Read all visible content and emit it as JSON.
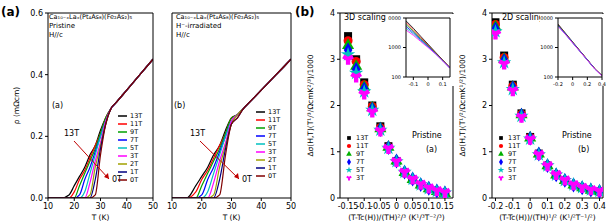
{
  "chart_data": [
    {
      "type": "line",
      "title": "Ca₁₀₋ₓLaₓ(Pt₄As₈)(Fe₂As₂)₅",
      "subtitle": "Pristine",
      "annotations": [
        "(a)",
        "(a)",
        "H//c",
        "13T",
        "0T"
      ],
      "x_label": "T (K)",
      "y_label": "ρ (mΩcm)",
      "xlim": [
        10,
        50
      ],
      "xticks": [
        10,
        20,
        30,
        40,
        50
      ],
      "ylim": [
        0,
        0.6
      ],
      "yticks": [
        {
          "value": 0,
          "label": "0.0"
        },
        {
          "value": 0.2,
          "label": "0.2"
        },
        {
          "value": 0.4,
          "label": "0.4"
        },
        {
          "value": 0.6,
          "label": "0.6"
        }
      ],
      "grid": false,
      "legend": "right",
      "line_style": "solid",
      "x": [
        10,
        15,
        18,
        20,
        22,
        24,
        26,
        28,
        30,
        32,
        34,
        36,
        40,
        45,
        50
      ],
      "series": [
        {
          "name": "13T",
          "color": "#000000",
          "values": [
            0,
            0,
            0.01,
            0.04,
            0.07,
            0.1,
            0.14,
            0.17,
            0.22,
            0.26,
            0.29,
            0.31,
            0.35,
            0.4,
            0.45
          ]
        },
        {
          "name": "11T",
          "color": "#ff0000",
          "values": [
            0,
            0,
            0,
            0.02,
            0.06,
            0.09,
            0.13,
            0.17,
            0.21,
            0.26,
            0.29,
            0.31,
            0.35,
            0.4,
            0.45
          ]
        },
        {
          "name": "9T",
          "color": "#00a000",
          "values": [
            0,
            0,
            0,
            0,
            0.04,
            0.08,
            0.12,
            0.16,
            0.21,
            0.26,
            0.29,
            0.31,
            0.35,
            0.4,
            0.45
          ]
        },
        {
          "name": "7T",
          "color": "#0000ff",
          "values": [
            0,
            0,
            0,
            0,
            0.01,
            0.06,
            0.1,
            0.15,
            0.2,
            0.25,
            0.29,
            0.31,
            0.35,
            0.4,
            0.45
          ]
        },
        {
          "name": "5T",
          "color": "#00c0c0",
          "values": [
            0,
            0,
            0,
            0,
            0,
            0.02,
            0.08,
            0.14,
            0.2,
            0.25,
            0.29,
            0.31,
            0.35,
            0.4,
            0.45
          ]
        },
        {
          "name": "3T",
          "color": "#ff00ff",
          "values": [
            0,
            0,
            0,
            0,
            0,
            0,
            0.05,
            0.12,
            0.18,
            0.25,
            0.29,
            0.31,
            0.35,
            0.4,
            0.45
          ]
        },
        {
          "name": "2T",
          "color": "#a0a000",
          "values": [
            0,
            0,
            0,
            0,
            0,
            0,
            0.01,
            0.1,
            0.17,
            0.24,
            0.29,
            0.31,
            0.35,
            0.4,
            0.45
          ]
        },
        {
          "name": "1T",
          "color": "#000080",
          "values": [
            0,
            0,
            0,
            0,
            0,
            0,
            0,
            0.06,
            0.16,
            0.24,
            0.29,
            0.31,
            0.35,
            0.4,
            0.45
          ]
        },
        {
          "name": "0T",
          "color": "#800000",
          "values": [
            0,
            0,
            0,
            0,
            0,
            0,
            0,
            0.01,
            0.14,
            0.24,
            0.29,
            0.31,
            0.35,
            0.4,
            0.45
          ]
        }
      ]
    },
    {
      "type": "line",
      "title": "Ca₁₀₋ₓLaₓ(Pt₄As₈)(Fe₂As₂)₅",
      "subtitle": "H⁻-irradiated",
      "annotations": [
        "(b)",
        "H//c",
        "13T",
        "0T"
      ],
      "x_label": "T (K)",
      "xlim": [
        10,
        50
      ],
      "xticks": [
        10,
        20,
        30,
        40,
        50
      ],
      "ylim": [
        0,
        0.6
      ],
      "yticks": [
        0,
        0.2,
        0.4,
        0.6
      ],
      "tick_labels": "x",
      "grid": false,
      "legend": "right",
      "line_style": "solid",
      "x": [
        10,
        15,
        18,
        20,
        22,
        24,
        26,
        28,
        30,
        32,
        34,
        36,
        40,
        45,
        50
      ],
      "series": [
        {
          "name": "13T",
          "color": "#000000",
          "values": [
            0,
            0,
            0.04,
            0.07,
            0.1,
            0.14,
            0.17,
            0.22,
            0.26,
            0.27,
            0.29,
            0.31,
            0.35,
            0.4,
            0.45
          ]
        },
        {
          "name": "11T",
          "color": "#ff0000",
          "values": [
            0,
            0,
            0.02,
            0.06,
            0.09,
            0.13,
            0.17,
            0.21,
            0.26,
            0.27,
            0.29,
            0.31,
            0.35,
            0.4,
            0.45
          ]
        },
        {
          "name": "9T",
          "color": "#00a000",
          "values": [
            0,
            0,
            0,
            0.04,
            0.08,
            0.12,
            0.16,
            0.21,
            0.26,
            0.27,
            0.29,
            0.31,
            0.35,
            0.4,
            0.45
          ]
        },
        {
          "name": "7T",
          "color": "#0000ff",
          "values": [
            0,
            0,
            0,
            0.01,
            0.06,
            0.1,
            0.15,
            0.2,
            0.25,
            0.27,
            0.29,
            0.31,
            0.35,
            0.4,
            0.45
          ]
        },
        {
          "name": "5T",
          "color": "#00c0c0",
          "values": [
            0,
            0,
            0,
            0,
            0.02,
            0.08,
            0.14,
            0.2,
            0.25,
            0.27,
            0.29,
            0.31,
            0.35,
            0.4,
            0.45
          ]
        },
        {
          "name": "3T",
          "color": "#ff00ff",
          "values": [
            0,
            0,
            0,
            0,
            0,
            0.05,
            0.12,
            0.18,
            0.25,
            0.27,
            0.29,
            0.31,
            0.35,
            0.4,
            0.45
          ]
        },
        {
          "name": "2T",
          "color": "#a0a000",
          "values": [
            0,
            0,
            0,
            0,
            0,
            0.01,
            0.1,
            0.17,
            0.24,
            0.27,
            0.29,
            0.31,
            0.35,
            0.4,
            0.45
          ]
        },
        {
          "name": "1T",
          "color": "#000080",
          "values": [
            0,
            0,
            0,
            0,
            0,
            0,
            0.06,
            0.16,
            0.24,
            0.26,
            0.29,
            0.31,
            0.35,
            0.4,
            0.45
          ]
        },
        {
          "name": "0T",
          "color": "#800000",
          "values": [
            0,
            0,
            0,
            0,
            0,
            0,
            0.01,
            0.14,
            0.24,
            0.26,
            0.29,
            0.31,
            0.35,
            0.4,
            0.45
          ]
        }
      ]
    },
    {
      "type": "scatter",
      "annotations": [
        "(b)",
        "3D scaling",
        "Pristine",
        "(a)"
      ],
      "x_label": "(T-Tc(H))/(TH)²/³ (K¹/³T⁻²/³)",
      "y_label": "Δσ(H,T)(T¹/³/ΩcmK²/³)/1000",
      "xlim": [
        -0.175,
        0.175
      ],
      "xticks": [
        -0.15,
        -0.1,
        -0.05,
        0,
        0.05,
        0.1,
        0.15
      ],
      "ylim": [
        0,
        4
      ],
      "yticks": [
        0,
        1,
        2,
        3,
        4
      ],
      "grid": false,
      "legend": "lower left",
      "x": [
        -0.15,
        -0.125,
        -0.1,
        -0.075,
        -0.05,
        -0.025,
        0,
        0.025,
        0.05,
        0.075,
        0.1,
        0.125,
        0.15
      ],
      "series": [
        {
          "name": "13T",
          "color": "#000000",
          "marker": "square",
          "values": [
            3.5,
            3.0,
            2.5,
            2.0,
            1.55,
            1.12,
            0.8,
            0.55,
            0.4,
            0.28,
            0.2,
            0.14,
            0.1
          ]
        },
        {
          "name": "11T",
          "color": "#ff0000",
          "marker": "circle",
          "values": [
            3.4,
            2.95,
            2.45,
            1.98,
            1.52,
            1.1,
            0.8,
            0.55,
            0.4,
            0.28,
            0.2,
            0.14,
            0.1
          ]
        },
        {
          "name": "9T",
          "color": "#00b000",
          "marker": "triangle",
          "values": [
            3.3,
            2.85,
            2.4,
            1.95,
            1.5,
            1.1,
            0.8,
            0.55,
            0.4,
            0.28,
            0.2,
            0.14,
            0.1
          ]
        },
        {
          "name": "7T",
          "color": "#0000ff",
          "marker": "diamond",
          "values": [
            3.2,
            2.78,
            2.35,
            1.92,
            1.48,
            1.09,
            0.8,
            0.56,
            0.41,
            0.29,
            0.21,
            0.15,
            0.11
          ]
        },
        {
          "name": "5T",
          "color": "#00c0c0",
          "marker": "star",
          "values": [
            3.1,
            2.7,
            2.3,
            1.9,
            1.47,
            1.08,
            0.79,
            0.56,
            0.41,
            0.29,
            0.21,
            0.15,
            0.11
          ]
        },
        {
          "name": "3T",
          "color": "#ff00ff",
          "marker": "wye",
          "values": [
            3.0,
            2.62,
            2.25,
            1.86,
            1.45,
            1.07,
            0.79,
            0.56,
            0.41,
            0.3,
            0.22,
            0.16,
            0.12
          ]
        }
      ],
      "inset": {
        "type": "line",
        "log": "y",
        "x": [
          -0.15,
          -0.1,
          -0.05,
          0,
          0.05,
          0.1,
          0.15
        ],
        "xlim": [
          -0.15,
          0.15
        ],
        "xticks": [
          -0.1,
          0,
          0.1
        ],
        "ylim": [
          100,
          10000
        ],
        "yticks": [
          100,
          1000,
          10000
        ],
        "series": [
          {
            "name": "13T",
            "color": "#000000",
            "values": [
              8000,
              4500,
              2400,
              1300,
              700,
              380,
              210
            ]
          },
          {
            "name": "11T",
            "color": "#ff0000",
            "values": [
              7000,
              4000,
              2200,
              1200,
              680,
              370,
              205
            ]
          },
          {
            "name": "9T",
            "color": "#00b000",
            "values": [
              6000,
              3600,
              2000,
              1150,
              660,
              365,
              200
            ]
          },
          {
            "name": "7T",
            "color": "#0000ff",
            "values": [
              5200,
              3200,
              1850,
              1100,
              640,
              360,
              200
            ]
          },
          {
            "name": "5T",
            "color": "#00c0c0",
            "values": [
              4500,
              2900,
              1700,
              1050,
              620,
              355,
              198
            ]
          },
          {
            "name": "3T",
            "color": "#ff00ff",
            "values": [
              3900,
              2600,
              1600,
              1000,
              610,
              350,
              195
            ]
          }
        ]
      }
    },
    {
      "type": "scatter",
      "annotations": [
        "2D scaling",
        "Pristine",
        "(b)"
      ],
      "x_label": "(T-Tc(H))/(TH)¹/² (K¹/²T⁻¹/²)",
      "y_label": "Δσ(H,T)(T¹/²/ΩcmK¹/²)/1000",
      "xlim": [
        -0.22,
        0.42
      ],
      "xticks": [
        -0.2,
        -0.1,
        0,
        0.1,
        0.2,
        0.3,
        0.4
      ],
      "ylim": [
        0,
        4
      ],
      "yticks": [
        0,
        1,
        2,
        3,
        4
      ],
      "grid": false,
      "legend": "lower left",
      "x": [
        -0.2,
        -0.15,
        -0.1,
        -0.05,
        0,
        0.05,
        0.1,
        0.15,
        0.2,
        0.25,
        0.3,
        0.35,
        0.4
      ],
      "series": [
        {
          "name": "13T",
          "color": "#000000",
          "marker": "square",
          "values": [
            3.8,
            3.08,
            2.45,
            1.83,
            1.32,
            0.96,
            0.7,
            0.5,
            0.38,
            0.28,
            0.22,
            0.17,
            0.14
          ]
        },
        {
          "name": "11T",
          "color": "#ff0000",
          "marker": "circle",
          "values": [
            3.75,
            3.04,
            2.42,
            1.81,
            1.31,
            0.95,
            0.7,
            0.5,
            0.38,
            0.28,
            0.22,
            0.17,
            0.14
          ]
        },
        {
          "name": "9T",
          "color": "#00b000",
          "marker": "triangle",
          "values": [
            3.7,
            3.0,
            2.4,
            1.8,
            1.3,
            0.95,
            0.7,
            0.5,
            0.38,
            0.28,
            0.22,
            0.17,
            0.14
          ]
        },
        {
          "name": "7T",
          "color": "#0000ff",
          "marker": "diamond",
          "values": [
            3.65,
            2.97,
            2.38,
            1.79,
            1.29,
            0.95,
            0.7,
            0.5,
            0.38,
            0.28,
            0.22,
            0.17,
            0.14
          ]
        },
        {
          "name": "5T",
          "color": "#00c0c0",
          "marker": "star",
          "values": [
            3.6,
            2.93,
            2.35,
            1.77,
            1.28,
            0.94,
            0.7,
            0.5,
            0.38,
            0.29,
            0.23,
            0.18,
            0.15
          ]
        },
        {
          "name": "3T",
          "color": "#ff00ff",
          "marker": "wye",
          "values": [
            3.55,
            2.9,
            2.32,
            1.75,
            1.27,
            0.94,
            0.7,
            0.51,
            0.39,
            0.29,
            0.23,
            0.18,
            0.15
          ]
        }
      ],
      "inset": {
        "type": "line",
        "log": "y",
        "x": [
          -0.2,
          -0.1,
          0,
          0.1,
          0.2,
          0.3,
          0.4
        ],
        "xlim": [
          -0.2,
          0.4
        ],
        "xticks": [
          -0.2,
          0,
          0.2,
          0.4
        ],
        "ylim": [
          100,
          10000
        ],
        "yticks": [
          100,
          1000,
          10000
        ],
        "series": [
          {
            "name": "13T",
            "color": "#000000",
            "values": [
              6200,
              3100,
              1550,
              770,
              390,
              195,
              112
            ]
          },
          {
            "name": "11T",
            "color": "#ff0000",
            "values": [
              6000,
              3000,
              1500,
              760,
              385,
              193,
              111
            ]
          },
          {
            "name": "9T",
            "color": "#00b000",
            "values": [
              5800,
              2950,
              1480,
              750,
              380,
              191,
              110
            ]
          },
          {
            "name": "7T",
            "color": "#0000ff",
            "values": [
              5600,
              2900,
              1460,
              740,
              378,
              190,
              110
            ]
          },
          {
            "name": "5T",
            "color": "#00c0c0",
            "values": [
              5400,
              2850,
              1440,
              735,
              375,
              189,
              109
            ]
          },
          {
            "name": "3T",
            "color": "#ff00ff",
            "values": [
              5200,
              2800,
              1420,
              730,
              372,
              188,
              108
            ]
          }
        ]
      }
    }
  ]
}
